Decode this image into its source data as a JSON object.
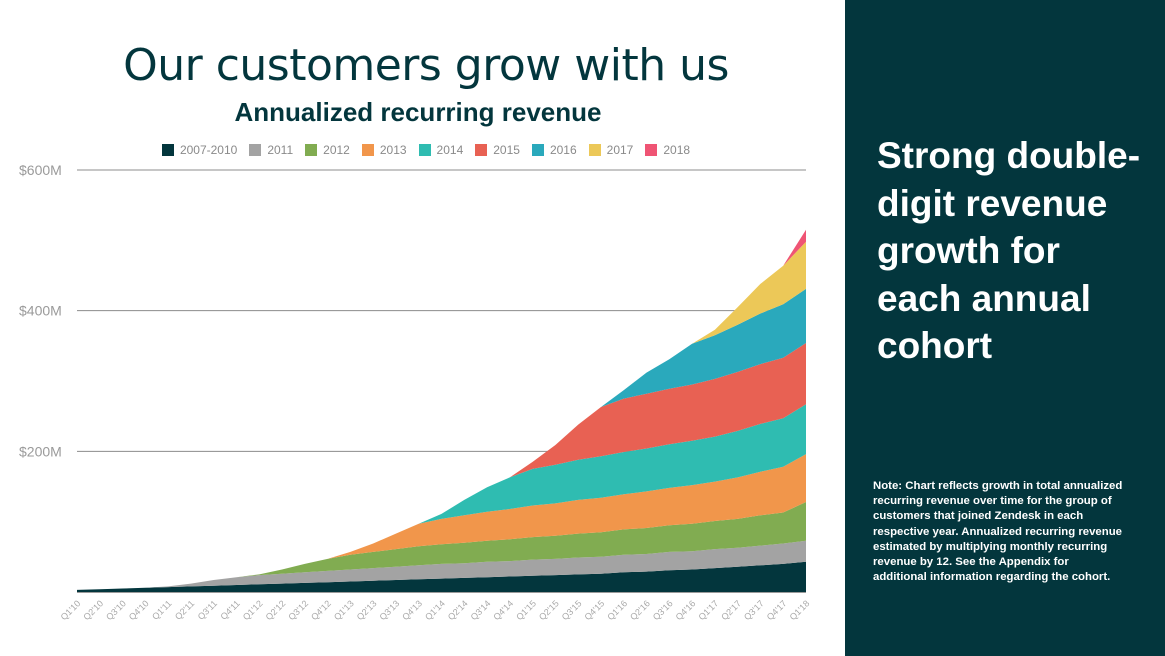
{
  "slide": {
    "title": "Our customers grow with us",
    "subtitle": "Annualized recurring revenue",
    "headline": "Strong double-digit revenue growth for each annual cohort",
    "note": "Note: Chart reflects growth in total annualized recurring revenue over time for the group of customers that joined Zendesk in each respective year. Annualized recurring revenue estimated by multiplying monthly recurring revenue by 12.  See the Appendix for additional information regarding the cohort."
  },
  "colors": {
    "panel_bg": "#03363d",
    "title": "#03363d"
  },
  "chart_data": {
    "type": "area",
    "stacked": true,
    "title": "Annualized recurring revenue",
    "xlabel": "",
    "ylabel": "",
    "ylim": [
      0,
      600
    ],
    "yticks": [
      200,
      400,
      600
    ],
    "ytick_labels": [
      "$200M",
      "$400M",
      "$600M"
    ],
    "grid": true,
    "legend_position": "top",
    "categories": [
      "Q1'10",
      "Q2'10",
      "Q3'10",
      "Q4'10",
      "Q1'11",
      "Q2'11",
      "Q3'11",
      "Q4'11",
      "Q1'12",
      "Q2'12",
      "Q3'12",
      "Q4'12",
      "Q1'13",
      "Q2'13",
      "Q3'13",
      "Q4'13",
      "Q1'14",
      "Q2'14",
      "Q3'14",
      "Q4'14",
      "Q1'15",
      "Q2'15",
      "Q3'15",
      "Q4'15",
      "Q1'16",
      "Q2'16",
      "Q3'16",
      "Q4'16",
      "Q1'17",
      "Q2'17",
      "Q3'17",
      "Q4'17",
      "Q1'18"
    ],
    "series": [
      {
        "name": "2007-2010",
        "color": "#03363d",
        "values": [
          3,
          4,
          5,
          6,
          7,
          8,
          9,
          10,
          11,
          12,
          13,
          14,
          15,
          16,
          17,
          18,
          19,
          20,
          21,
          22,
          23,
          24,
          25,
          26,
          28,
          29,
          31,
          32,
          34,
          36,
          38,
          40,
          43
        ]
      },
      {
        "name": "2011",
        "color": "#a3a3a3",
        "values": [
          0,
          0,
          0,
          0,
          1,
          4,
          8,
          11,
          13,
          14,
          15,
          16,
          17,
          18,
          19,
          20,
          21,
          21,
          22,
          22,
          23,
          23,
          24,
          24,
          25,
          25,
          26,
          26,
          27,
          27,
          28,
          29,
          30
        ]
      },
      {
        "name": "2012",
        "color": "#81ac51",
        "values": [
          0,
          0,
          0,
          0,
          0,
          0,
          0,
          0,
          1,
          6,
          12,
          17,
          21,
          23,
          25,
          27,
          28,
          29,
          30,
          31,
          32,
          33,
          34,
          35,
          36,
          37,
          38,
          39,
          40,
          41,
          43,
          44,
          55
        ]
      },
      {
        "name": "2013",
        "color": "#f1964b",
        "values": [
          0,
          0,
          0,
          0,
          0,
          0,
          0,
          0,
          0,
          0,
          0,
          0,
          4,
          12,
          22,
          32,
          36,
          39,
          41,
          43,
          45,
          46,
          48,
          49,
          50,
          52,
          53,
          55,
          56,
          59,
          62,
          65,
          68
        ]
      },
      {
        "name": "2014",
        "color": "#2fbcb1",
        "values": [
          0,
          0,
          0,
          0,
          0,
          0,
          0,
          0,
          0,
          0,
          0,
          0,
          0,
          0,
          0,
          0,
          7,
          22,
          35,
          45,
          52,
          55,
          57,
          59,
          60,
          61,
          62,
          63,
          64,
          66,
          68,
          69,
          71
        ]
      },
      {
        "name": "2015",
        "color": "#e86153",
        "values": [
          0,
          0,
          0,
          0,
          0,
          0,
          0,
          0,
          0,
          0,
          0,
          0,
          0,
          0,
          0,
          0,
          0,
          0,
          0,
          0,
          10,
          28,
          50,
          70,
          76,
          78,
          79,
          80,
          82,
          84,
          85,
          86,
          87
        ]
      },
      {
        "name": "2016",
        "color": "#2aa9bc",
        "values": [
          0,
          0,
          0,
          0,
          0,
          0,
          0,
          0,
          0,
          0,
          0,
          0,
          0,
          0,
          0,
          0,
          0,
          0,
          0,
          0,
          0,
          0,
          0,
          0,
          12,
          30,
          42,
          58,
          62,
          67,
          72,
          76,
          77
        ]
      },
      {
        "name": "2017",
        "color": "#ecc858",
        "values": [
          0,
          0,
          0,
          0,
          0,
          0,
          0,
          0,
          0,
          0,
          0,
          0,
          0,
          0,
          0,
          0,
          0,
          0,
          0,
          0,
          0,
          0,
          0,
          0,
          0,
          0,
          0,
          0,
          8,
          25,
          42,
          55,
          67
        ]
      },
      {
        "name": "2018",
        "color": "#ef5474",
        "values": [
          0,
          0,
          0,
          0,
          0,
          0,
          0,
          0,
          0,
          0,
          0,
          0,
          0,
          0,
          0,
          0,
          0,
          0,
          0,
          0,
          0,
          0,
          0,
          0,
          0,
          0,
          0,
          0,
          0,
          0,
          0,
          0,
          17
        ]
      }
    ]
  }
}
